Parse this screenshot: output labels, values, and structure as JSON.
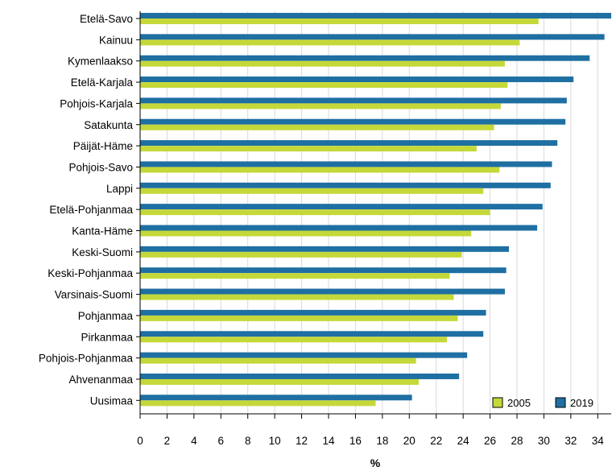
{
  "chart_data": {
    "type": "bar",
    "orientation": "horizontal",
    "xlabel": "%",
    "xlim": [
      0,
      35
    ],
    "xticks": [
      0,
      2,
      4,
      6,
      8,
      10,
      12,
      14,
      16,
      18,
      20,
      22,
      24,
      26,
      28,
      30,
      32,
      34
    ],
    "grid": "vertical",
    "legend_position": "bottom-right",
    "categories": [
      "Etelä-Savo",
      "Kainuu",
      "Kymenlaakso",
      "Etelä-Karjala",
      "Pohjois-Karjala",
      "Satakunta",
      "Päijät-Häme",
      "Pohjois-Savo",
      "Lappi",
      "Etelä-Pohjanmaa",
      "Kanta-Häme",
      "Keski-Suomi",
      "Keski-Pohjanmaa",
      "Varsinais-Suomi",
      "Pohjanmaa",
      "Pirkanmaa",
      "Pohjois-Pohjanmaa",
      "Ahvenanmaa",
      "Uusimaa"
    ],
    "series": [
      {
        "name": "2019",
        "color": "#1f6fa3",
        "values": [
          35.0,
          34.5,
          33.4,
          32.2,
          31.7,
          31.6,
          31.0,
          30.6,
          30.5,
          29.9,
          29.5,
          27.4,
          27.2,
          27.1,
          25.7,
          25.5,
          24.3,
          23.7,
          20.2
        ]
      },
      {
        "name": "2005",
        "color": "#c5d83a",
        "values": [
          29.6,
          28.2,
          27.1,
          27.3,
          26.8,
          26.3,
          25.0,
          26.7,
          25.5,
          26.0,
          24.6,
          23.9,
          23.0,
          23.3,
          23.6,
          22.8,
          20.5,
          20.7,
          17.5
        ]
      }
    ],
    "legend_order": [
      "2005",
      "2019"
    ]
  }
}
